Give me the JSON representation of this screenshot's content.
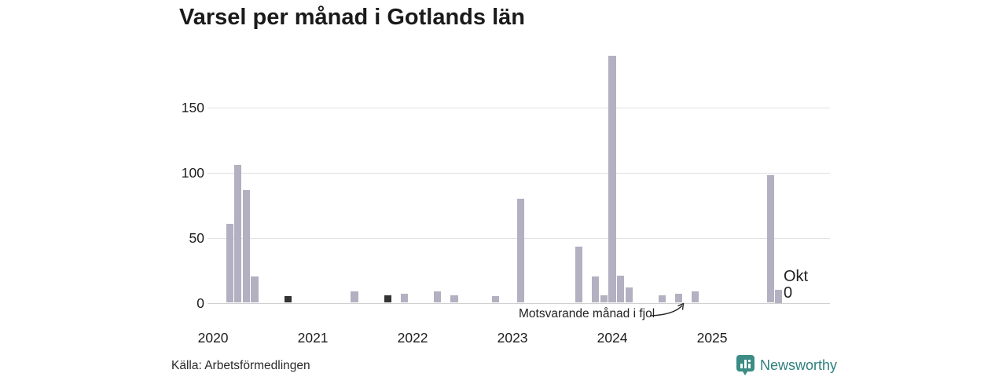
{
  "chart_data": {
    "type": "bar",
    "title": "Varsel per månad i Gotlands län",
    "xlabel": "",
    "ylabel": "",
    "ylim": [
      0,
      200
    ],
    "yticks": [
      0,
      50,
      100,
      150
    ],
    "grid": true,
    "x_start": "2020-01",
    "x_end": "2025-10",
    "year_labels": [
      "2020",
      "2021",
      "2022",
      "2023",
      "2024",
      "2025"
    ],
    "bar_color": "#b3b0c1",
    "highlight_color": "#333333",
    "points": [
      {
        "month": "2020-03",
        "value": 61
      },
      {
        "month": "2020-04",
        "value": 106
      },
      {
        "month": "2020-05",
        "value": 87
      },
      {
        "month": "2020-06",
        "value": 20
      },
      {
        "month": "2020-10",
        "value": 5,
        "highlight": true
      },
      {
        "month": "2021-06",
        "value": 9
      },
      {
        "month": "2021-10",
        "value": 6,
        "highlight": true
      },
      {
        "month": "2021-12",
        "value": 7
      },
      {
        "month": "2022-04",
        "value": 9
      },
      {
        "month": "2022-06",
        "value": 6
      },
      {
        "month": "2022-11",
        "value": 5
      },
      {
        "month": "2023-02",
        "value": 80
      },
      {
        "month": "2023-09",
        "value": 43
      },
      {
        "month": "2023-11",
        "value": 20
      },
      {
        "month": "2023-12",
        "value": 6
      },
      {
        "month": "2024-01",
        "value": 190
      },
      {
        "month": "2024-02",
        "value": 21
      },
      {
        "month": "2024-03",
        "value": 12
      },
      {
        "month": "2024-07",
        "value": 6
      },
      {
        "month": "2024-09",
        "value": 7
      },
      {
        "month": "2024-11",
        "value": 9
      },
      {
        "month": "2025-08",
        "value": 98
      },
      {
        "month": "2025-09",
        "value": 10
      },
      {
        "month": "2025-10",
        "value": 0
      }
    ],
    "annotation": "Motsvarande månad i fjol",
    "last_point_label": {
      "month_label": "Okt",
      "value_label": "0"
    }
  },
  "footer": {
    "source": "Källa: Arbetsförmedlingen",
    "brand": "Newsworthy",
    "brand_color": "#2e7f7c",
    "brand_icon_color": "#3b8c84"
  }
}
